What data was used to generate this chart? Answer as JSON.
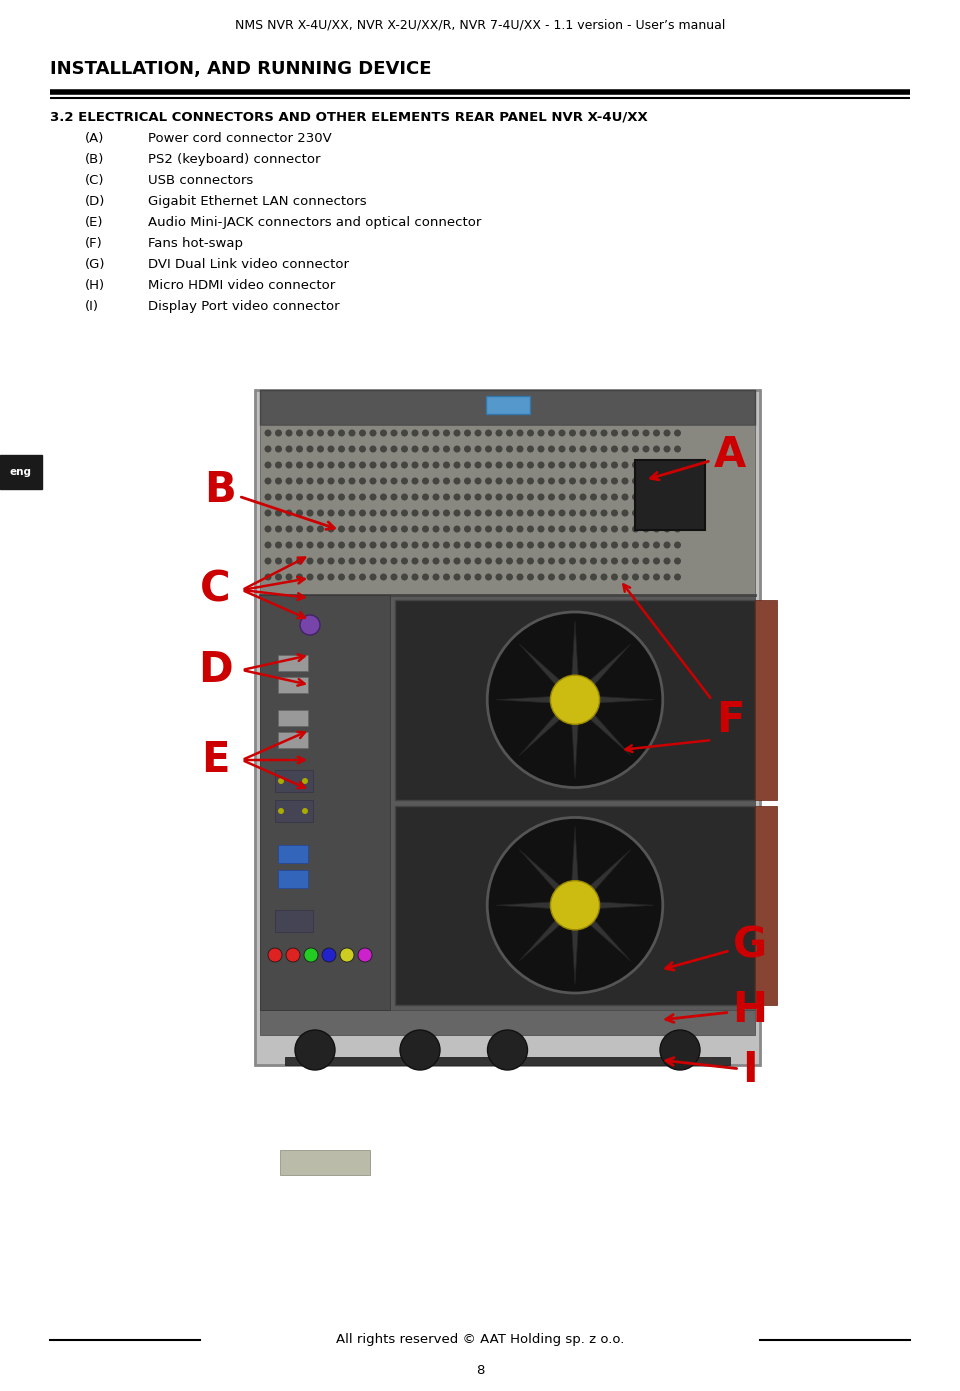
{
  "page_title": "NMS NVR X-4U/XX, NVR X-2U/XX/R, NVR 7-4U/XX - 1.1 version - User’s manual",
  "section_title": "INSTALLATION, AND RUNNING DEVICE",
  "subsection_title": "3.2 ELECTRICAL CONNECTORS AND OTHER ELEMENTS REAR PANEL NVR X-4U/XX",
  "items": [
    [
      "(A)",
      "Power cord connector 230V"
    ],
    [
      "(B)",
      "PS2 (keyboard) connector"
    ],
    [
      "(C)",
      "USB connectors"
    ],
    [
      "(D)",
      "Gigabit Ethernet LAN connectors"
    ],
    [
      "(E)",
      "Audio Mini-JACK connectors and optical connector"
    ],
    [
      "(F)",
      "Fans hot-swap"
    ],
    [
      "(G)",
      "DVI Dual Link video connector"
    ],
    [
      "(H)",
      "Micro HDMI video connector"
    ],
    [
      "(I)",
      "Display Port video connector"
    ]
  ],
  "eng_label": "eng",
  "footer_text": "All rights reserved © AAT Holding sp. z o.o.",
  "page_number": "8",
  "bg_color": "#ffffff",
  "text_color": "#000000",
  "label_color": "#cc0000",
  "arrow_color": "#cc0000",
  "fig_width": 9.6,
  "fig_height": 13.91
}
